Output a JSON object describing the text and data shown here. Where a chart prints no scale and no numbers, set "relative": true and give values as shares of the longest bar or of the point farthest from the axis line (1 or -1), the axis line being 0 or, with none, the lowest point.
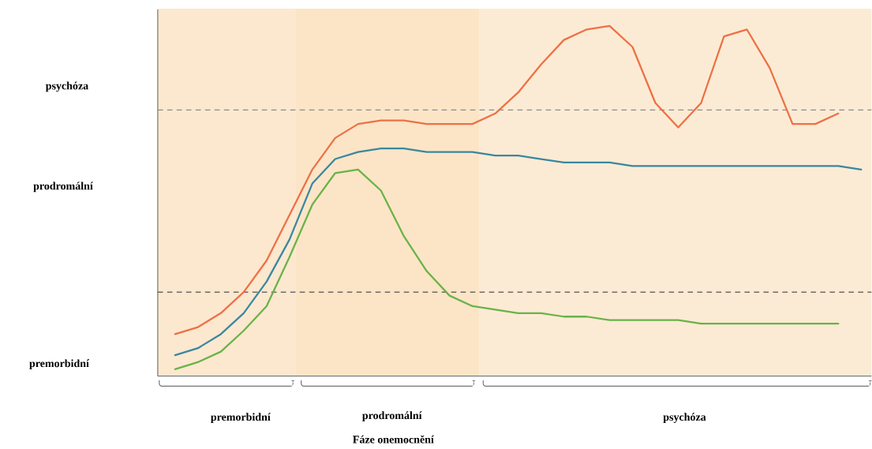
{
  "chart_data": {
    "type": "line",
    "relative": true,
    "marker": "none",
    "line_style": "solid",
    "categories": [
      null,
      null,
      null,
      null,
      null,
      null,
      null,
      null,
      null,
      null,
      null,
      null,
      null,
      null,
      null,
      null,
      null,
      null,
      null,
      null,
      null,
      null,
      null,
      null,
      null,
      null,
      null,
      null,
      null,
      null,
      null
    ],
    "series": [
      {
        "color": "#ee7046",
        "values": [
          0.12,
          0.14,
          0.18,
          0.24,
          0.33,
          0.46,
          0.59,
          0.68,
          0.72,
          0.73,
          0.73,
          0.72,
          0.72,
          0.72,
          0.75,
          0.81,
          0.89,
          0.96,
          0.99,
          1,
          0.94,
          0.78,
          0.71,
          0.78,
          0.97,
          0.99,
          0.88,
          0.72,
          0.72,
          0.75,
          null
        ]
      },
      {
        "color": "#3a87a0",
        "values": [
          0.06,
          0.08,
          0.12,
          0.18,
          0.27,
          0.39,
          0.55,
          0.62,
          0.64,
          0.65,
          0.65,
          0.64,
          0.64,
          0.64,
          0.63,
          0.63,
          0.62,
          0.61,
          0.61,
          0.61,
          0.6,
          0.6,
          0.6,
          0.6,
          0.6,
          0.6,
          0.6,
          0.6,
          0.6,
          0.6,
          0.59
        ]
      },
      {
        "color": "#6ab24a",
        "values": [
          0.02,
          0.04,
          0.07,
          0.13,
          0.2,
          0.34,
          0.49,
          0.58,
          0.59,
          0.53,
          0.4,
          0.3,
          0.23,
          0.2,
          0.19,
          0.18,
          0.18,
          0.17,
          0.17,
          0.16,
          0.16,
          0.16,
          0.16,
          0.15,
          0.15,
          0.15,
          0.15,
          0.15,
          0.15,
          0.15,
          null
        ]
      }
    ],
    "ref_lines": [
      {
        "axis": "y",
        "value": 0.76,
        "color": "#8c8c8c",
        "line_style": "dashed"
      },
      {
        "axis": "y",
        "value": 0.24,
        "color": "#404040",
        "line_style": "dashed"
      }
    ],
    "annotations": [
      "psychóza",
      "prodromální",
      "premorbidní",
      "premorbidní",
      "prodromální",
      "psychóza",
      "Fáze onemocnění"
    ]
  }
}
